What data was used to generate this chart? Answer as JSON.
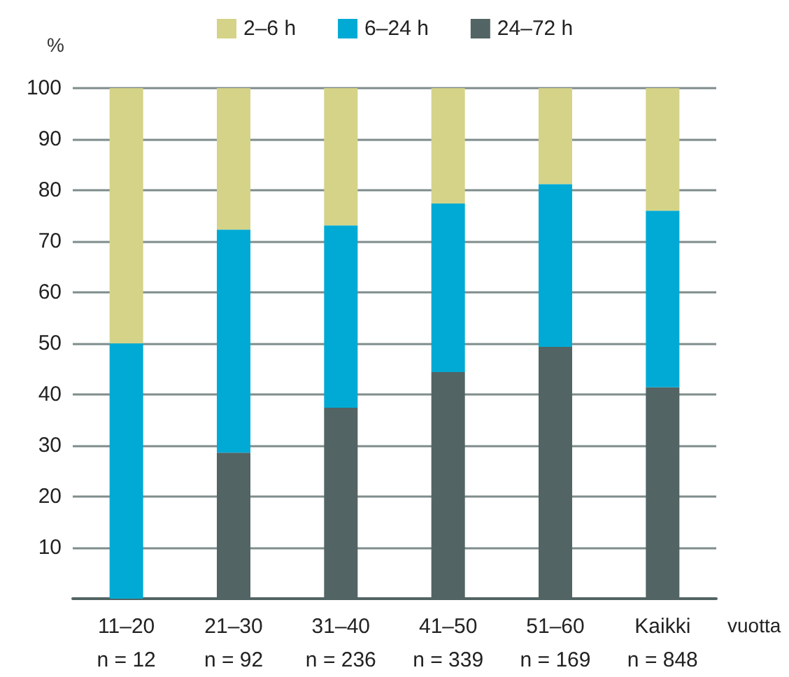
{
  "chart_data": {
    "type": "bar",
    "stacked": true,
    "ylabel": "%",
    "xlabel": "vuotta",
    "categories": [
      "11–20\nn = 12",
      "21–30\nn = 92",
      "31–40\nn = 236",
      "41–50\nn = 339",
      "51–60\nn = 169",
      "Kaikki\nn = 848"
    ],
    "series": [
      {
        "name": "24–72 h",
        "color": "#526463",
        "values": [
          0,
          28.6,
          37.4,
          44.4,
          49.3,
          41.4
        ]
      },
      {
        "name": "6–24 h",
        "color": "#00aad4",
        "values": [
          50,
          43.7,
          35.7,
          33,
          31.9,
          34.6
        ]
      },
      {
        "name": "2–6 h",
        "color": "#d4d388",
        "values": [
          50,
          27.7,
          26.9,
          22.6,
          18.8,
          24
        ]
      }
    ],
    "ylim": [
      0,
      100
    ],
    "yticks": [
      {
        "value": 0,
        "label": null
      },
      10,
      20,
      30,
      40,
      50,
      60,
      70,
      80,
      90,
      100
    ],
    "grid": "y",
    "legend": "top"
  }
}
